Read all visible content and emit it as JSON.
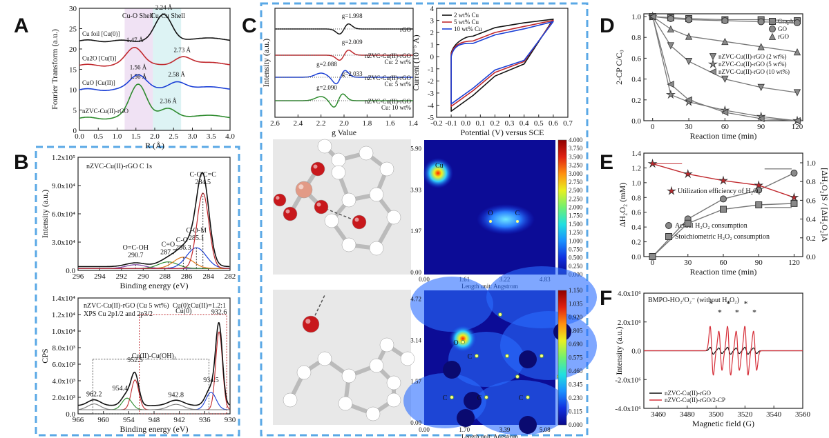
{
  "panels": {
    "A": "A",
    "B": "B",
    "C": "C",
    "D": "D",
    "E": "E",
    "F": "F"
  },
  "chart_data": [
    {
      "panel": "A",
      "type": "line",
      "xlabel": "R (Å)",
      "ylabel": "Fourier Transform (a.u.)",
      "xlim": [
        0.0,
        4.0
      ],
      "ylim": [
        0,
        30
      ],
      "xticks": [
        "0.0",
        "0.5",
        "1.0",
        "1.5",
        "2.0",
        "2.5",
        "3.0",
        "3.5",
        "4.0"
      ],
      "yticks": [
        "0",
        "5",
        "10",
        "15",
        "20",
        "25",
        "30"
      ],
      "shells": [
        "Cu-O Shell",
        "Cu-Cu Shell"
      ],
      "series": [
        {
          "name": "Cu foil [Cu(0)]",
          "color": "#111111",
          "offset": 22,
          "peaks": [
            {
              "r": 2.24,
              "h": 6.5
            }
          ],
          "labels": [
            "2.24 Å"
          ]
        },
        {
          "name": "Cu2O [Cu(I)]",
          "color": "#c0282d",
          "offset": 16,
          "peaks": [
            {
              "r": 1.47,
              "h": 4.5
            },
            {
              "r": 2.73,
              "h": 2.0
            }
          ],
          "labels": [
            "1.47 Å",
            "2.73 Å"
          ]
        },
        {
          "name": "CuO [Cu(II)]",
          "color": "#1a3fd6",
          "offset": 10,
          "peaks": [
            {
              "r": 1.56,
              "h": 3.8
            },
            {
              "r": 2.58,
              "h": 2.0
            }
          ],
          "labels": [
            "1.56 Å",
            "2.58 Å"
          ]
        },
        {
          "name": "nZVC-Cu(II)-rGO",
          "color": "#2e8b2e",
          "offset": 3,
          "peaks": [
            {
              "r": 1.56,
              "h": 8.5
            },
            {
              "r": 2.36,
              "h": 2.5
            }
          ],
          "labels": [
            "1.56 Å",
            "2.36 Å"
          ]
        }
      ]
    },
    {
      "panel": "B-top",
      "type": "line",
      "title": "nZVC-Cu(II)-rGO C 1s",
      "xlabel": "Binding energy (eV)",
      "ylabel": "Intensity (a.u.)",
      "xlim": [
        296,
        282
      ],
      "ylim": [
        0,
        120000
      ],
      "xticks": [
        "296",
        "294",
        "292",
        "290",
        "288",
        "286",
        "284",
        "282"
      ],
      "yticks": [
        "0.0",
        "3.0x10⁴",
        "6.0x10⁴",
        "9.0x10⁴",
        "1.2x10⁵"
      ],
      "peaks": [
        {
          "label": "O=C-OH",
          "e": 290.7,
          "h": 4000
        },
        {
          "label": "C=O",
          "e": 287.7,
          "h": 7000
        },
        {
          "label": "C-O",
          "e": 286.3,
          "h": 12000
        },
        {
          "label": "C-O-M",
          "e": 285.1,
          "h": 22000
        },
        {
          "label": "C-C/C=C",
          "e": 284.5,
          "h": 80000
        }
      ]
    },
    {
      "panel": "B-bottom",
      "type": "line",
      "title": "nZVC-Cu(II)-rGO (Cu 5 wt%)",
      "subtitle": "XPS Cu 2p1/2 and 2p3/2",
      "ratio": "Cu(0):Cu(II)=1.2:1",
      "xlabel": "Binding energy (eV)",
      "ylabel": "CPS",
      "xlim": [
        966,
        930
      ],
      "ylim": [
        0,
        14000
      ],
      "xticks": [
        "966",
        "960",
        "954",
        "948",
        "942",
        "936",
        "930"
      ],
      "yticks": [
        "0.0",
        "2.0x10³",
        "4.0x10³",
        "6.0x10³",
        "8.0x10³",
        "1.0x10⁴",
        "1.2x10⁴",
        "1.4x10⁴"
      ],
      "regions": [
        "Cu(0)",
        "Cu(II)-Cu(OH)₂"
      ],
      "peaks": [
        {
          "label": "962.2",
          "e": 962.2,
          "h": 1100
        },
        {
          "label": "954.4",
          "e": 954.4,
          "h": 1800
        },
        {
          "label": "952.5",
          "e": 952.5,
          "h": 5200
        },
        {
          "label": "942.8",
          "e": 942.8,
          "h": 1000
        },
        {
          "label": "934.5",
          "e": 934.5,
          "h": 2800
        },
        {
          "label": "932.6",
          "e": 932.6,
          "h": 11000
        }
      ]
    },
    {
      "panel": "C-epr",
      "type": "line",
      "xlabel": "g Value",
      "ylabel": "Intensity (a.u.)",
      "xlim": [
        2.6,
        1.4
      ],
      "xticks": [
        "2.6",
        "2.4",
        "2.2",
        "2.0",
        "1.8",
        "1.6",
        "1.4"
      ],
      "series": [
        {
          "name": "rGO",
          "color": "#111111",
          "g_labels": [
            "g=1.998"
          ]
        },
        {
          "name": "nZVC-Cu(II)-rGO Cu: 2 wt%",
          "color": "#c0282d",
          "g_labels": [
            "g=2.009"
          ]
        },
        {
          "name": "nZVC-Cu(II)-rGO Cu: 5 wt%",
          "color": "#1a3fd6",
          "g_labels": [
            "g=2.088",
            "g=2.033"
          ]
        },
        {
          "name": "nZVC-Cu(II)-rGO Cu: 10 wt%",
          "color": "#2e8b2e",
          "g_labels": [
            "g=2.090"
          ]
        }
      ],
      "legend_names": [
        "rGO",
        "nZVC-Cu(II)-rGO",
        "Cu: 2 wt%",
        "nZVC-Cu(II)-rGO",
        "Cu: 5 wt%",
        "nZVC-Cu(II)-rGO",
        "Cu: 10 wt%"
      ]
    },
    {
      "panel": "C-cv",
      "type": "line",
      "xlabel": "Potential (V) versus SCE",
      "ylabel": "Current (10⁻⁵ A)",
      "xlim": [
        -0.2,
        0.7
      ],
      "ylim": [
        -5,
        4
      ],
      "xticks": [
        "-0.2",
        "-0.1",
        "0.0",
        "0.1",
        "0.2",
        "0.3",
        "0.4",
        "0.5",
        "0.6",
        "0.7"
      ],
      "yticks": [
        "-5",
        "-4",
        "-3",
        "-2",
        "-1",
        "0",
        "1",
        "2",
        "3",
        "4"
      ],
      "series": [
        {
          "name": "2 wt% Cu",
          "color": "#111111",
          "upper": [
            0.3,
            1.7,
            2.4,
            2.8,
            3.1
          ],
          "lower": [
            -4.5,
            -3.2,
            -1.6,
            -0.6,
            0.0
          ]
        },
        {
          "name": "5 wt% Cu",
          "color": "#c0282d",
          "upper": [
            0.2,
            1.3,
            2.0,
            2.5,
            3.0
          ],
          "lower": [
            -4.1,
            -2.8,
            -1.3,
            -0.4,
            0.0
          ]
        },
        {
          "name": "10 wt% Cu",
          "color": "#1a3fd6",
          "upper": [
            0.0,
            1.1,
            1.8,
            2.3,
            2.9
          ],
          "lower": [
            -3.9,
            -2.6,
            -1.1,
            -0.3,
            0.0
          ]
        }
      ]
    },
    {
      "panel": "C-map1",
      "type": "heatmap",
      "xlabel": "Length unit: Angstrom",
      "xticks": [
        "0.00",
        "1.61",
        "3.22",
        "4.83"
      ],
      "yticks": [
        "0.00",
        "1.97",
        "3.93",
        "5.90"
      ],
      "colorbar": [
        "0.000",
        "0.250",
        "0.500",
        "0.750",
        "1.000",
        "1.250",
        "1.500",
        "1.750",
        "2.000",
        "2.250",
        "2.500",
        "2.750",
        "3.000",
        "3.250",
        "3.500",
        "3.750",
        "4.000"
      ],
      "atoms": [
        "Cu",
        "O",
        "C"
      ]
    },
    {
      "panel": "C-map2",
      "type": "heatmap",
      "xlabel": "Length unit: Angstrom",
      "xticks": [
        "0.00",
        "1.70",
        "3.39",
        "5.08"
      ],
      "yticks": [
        "0.00",
        "1.57",
        "3.14",
        "4.72"
      ],
      "colorbar": [
        "0.000",
        "0.115",
        "0.230",
        "0.345",
        "0.460",
        "0.575",
        "0.690",
        "0.805",
        "0.920",
        "1.035",
        "1.150"
      ],
      "atoms": [
        "O",
        "C",
        "C",
        "C",
        "C"
      ]
    },
    {
      "panel": "D",
      "type": "line",
      "xlabel": "Reaction time (min)",
      "ylabel": "2-CP C/C₀",
      "xlim": [
        -5,
        120
      ],
      "ylim": [
        0.0,
        1.0
      ],
      "xticks": [
        "0",
        "30",
        "60",
        "90",
        "120"
      ],
      "yticks": [
        "0.0",
        "0.2",
        "0.4",
        "0.6",
        "0.8",
        "1.0"
      ],
      "x": [
        0,
        15,
        30,
        60,
        90,
        120
      ],
      "series": [
        {
          "name": "Graphite",
          "marker": "square",
          "values": [
            1.0,
            0.99,
            0.98,
            0.97,
            0.97,
            0.96
          ]
        },
        {
          "name": "GO",
          "marker": "circle",
          "values": [
            1.0,
            0.98,
            0.97,
            0.96,
            0.95,
            0.94
          ]
        },
        {
          "name": "rGO",
          "marker": "triangle",
          "values": [
            1.0,
            0.88,
            0.81,
            0.76,
            0.71,
            0.66
          ]
        },
        {
          "name": "nZVC-Cu(II)-rGO (2 wt%)",
          "marker": "tri-down",
          "values": [
            1.0,
            0.72,
            0.57,
            0.4,
            0.32,
            0.27
          ]
        },
        {
          "name": "nZVC-Cu(II)-rGO (5 wt%)",
          "marker": "star",
          "values": [
            1.0,
            0.25,
            0.18,
            0.1,
            0.04,
            0.0
          ]
        },
        {
          "name": "nZVC-Cu(II)-rGO (10 wt%)",
          "marker": "tri-left",
          "values": [
            1.0,
            0.35,
            0.2,
            0.08,
            0.02,
            0.0
          ]
        }
      ]
    },
    {
      "panel": "E",
      "type": "line",
      "xlabel": "Reaction time (min)",
      "ylabel": "ΔH₂O₂ (mM)",
      "ylabel2": "[ΔH₂O₂]S / [ΔH₂O₂]A",
      "xlim": [
        -5,
        125
      ],
      "ylim": [
        0.0,
        1.4
      ],
      "ylim2": [
        0.0,
        1.0
      ],
      "xticks": [
        "0",
        "30",
        "60",
        "90",
        "120"
      ],
      "yticks": [
        "0.0",
        "0.2",
        "0.4",
        "0.6",
        "0.8",
        "1.0",
        "1.2",
        "1.4"
      ],
      "yticks2": [
        "0.0",
        "0.2",
        "0.4",
        "0.6",
        "0.8",
        "1.0"
      ],
      "x": [
        0,
        30,
        60,
        90,
        120
      ],
      "series": [
        {
          "name": "Actual H₂O₂ consumption",
          "axis": "left",
          "marker": "circle",
          "values": [
            0.0,
            0.51,
            0.78,
            0.9,
            1.13
          ]
        },
        {
          "name": "Stoichiometric H₂O₂ consumption",
          "axis": "left",
          "marker": "square",
          "values": [
            0.0,
            0.45,
            0.64,
            0.7,
            0.72
          ]
        },
        {
          "name": "Utilization efficiency of H₂O₂",
          "axis": "right",
          "marker": "star",
          "color": "#c0282d",
          "values": [
            0.99,
            0.88,
            0.81,
            0.76,
            0.63
          ]
        }
      ]
    },
    {
      "panel": "F",
      "type": "line",
      "title": "BMPO-HO₂/O₂⁻ (without H₂O₂)",
      "xlabel": "Magnetic field (G)",
      "ylabel": "Intensity (a.u.)",
      "xlim": [
        3450,
        3560
      ],
      "ylim": [
        -4000000,
        4000000
      ],
      "xticks": [
        "3460",
        "3480",
        "3500",
        "3520",
        "3540",
        "3560"
      ],
      "yticks": [
        "-4.0x10⁶",
        "-2.0x10⁶",
        "0.0",
        "2.0x10⁶",
        "4.0x10⁶"
      ],
      "series": [
        {
          "name": "nZVC-Cu(II)-rGO",
          "color": "#111111",
          "amplitude": 0.4
        },
        {
          "name": "nZVC-Cu(II)-rGO/2-CP",
          "color": "#d6303a",
          "amplitude": 2.8
        }
      ],
      "peak_fields": [
        3497,
        3503,
        3509,
        3515,
        3521,
        3527
      ]
    }
  ]
}
